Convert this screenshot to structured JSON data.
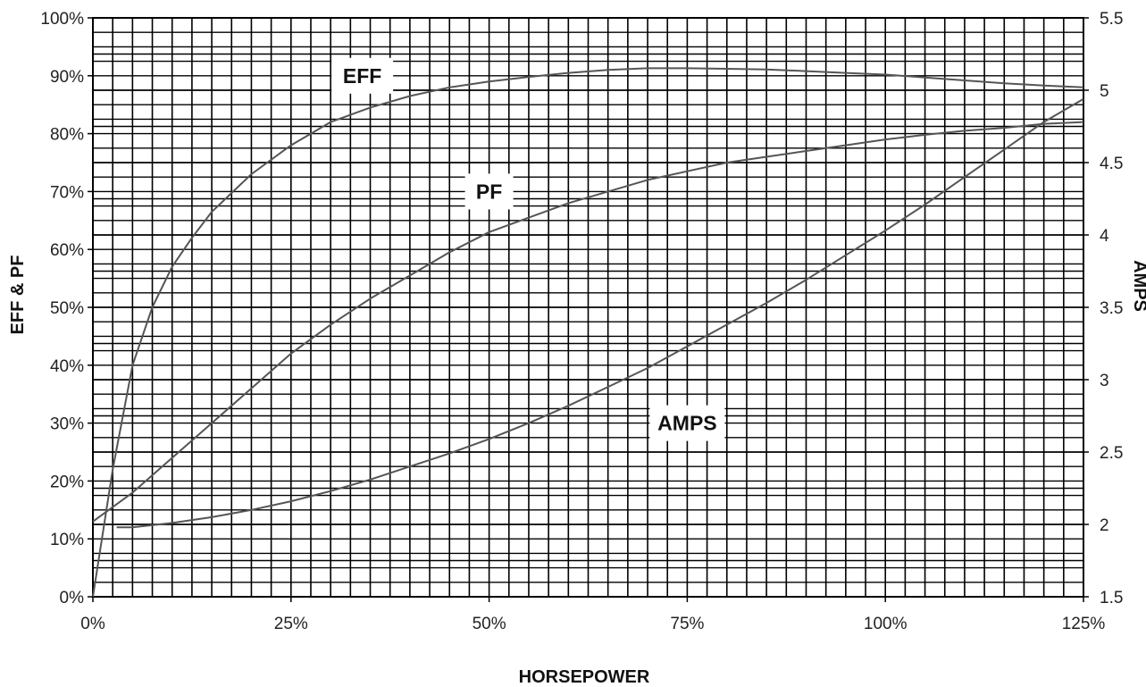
{
  "chart_data": {
    "type": "line",
    "title": "",
    "xlabel": "HORSEPOWER",
    "ylabel": "EFF & PF",
    "y2label": "AMPS",
    "xlim": [
      0,
      125
    ],
    "ylim": [
      0,
      100
    ],
    "y2lim": [
      1.5,
      5.5
    ],
    "x_ticks": [
      "0%",
      "25%",
      "50%",
      "75%",
      "100%",
      "125%"
    ],
    "y_ticks": [
      "0%",
      "10%",
      "20%",
      "30%",
      "40%",
      "50%",
      "60%",
      "70%",
      "80%",
      "90%",
      "100%"
    ],
    "y2_ticks": [
      "1.5",
      "2",
      "2.5",
      "3",
      "3.5",
      "4",
      "4.5",
      "5",
      "5.5"
    ],
    "grid": true,
    "line_color": "#555555",
    "grid_color": "#000000",
    "series": [
      {
        "name": "EFF",
        "axis": "left",
        "x": [
          0,
          2.5,
          5,
          7.5,
          10,
          12.5,
          15,
          20,
          25,
          30,
          35,
          40,
          45,
          50,
          55,
          60,
          65,
          70,
          75,
          80,
          85,
          90,
          95,
          100,
          105,
          110,
          115,
          120,
          125
        ],
        "y": [
          0,
          22,
          40,
          50,
          57,
          62,
          66.5,
          73,
          78,
          82,
          84.5,
          86.5,
          88,
          89,
          89.8,
          90.5,
          91,
          91.3,
          91.3,
          91.2,
          91.1,
          90.8,
          90.5,
          90.2,
          89.7,
          89.2,
          88.7,
          88.3,
          88
        ]
      },
      {
        "name": "PF",
        "axis": "left",
        "x": [
          0,
          5,
          10,
          15,
          20,
          25,
          30,
          35,
          40,
          45,
          50,
          55,
          60,
          65,
          70,
          75,
          80,
          85,
          90,
          95,
          100,
          105,
          110,
          115,
          120,
          125
        ],
        "y": [
          13,
          18,
          24,
          30,
          36,
          42,
          47,
          51.5,
          55.5,
          59.5,
          63,
          65.5,
          68,
          70,
          72,
          73.5,
          75,
          76,
          77,
          78,
          79,
          79.8,
          80.5,
          81,
          81.7,
          82
        ]
      },
      {
        "name": "AMPS",
        "axis": "right",
        "x": [
          3,
          5,
          10,
          15,
          20,
          25,
          30,
          35,
          40,
          45,
          50,
          55,
          60,
          65,
          70,
          75,
          80,
          85,
          90,
          95,
          100,
          105,
          110,
          115,
          120,
          125
        ],
        "y": [
          1.98,
          1.98,
          2.01,
          2.05,
          2.1,
          2.16,
          2.23,
          2.31,
          2.4,
          2.49,
          2.59,
          2.7,
          2.82,
          2.95,
          3.08,
          3.23,
          3.38,
          3.53,
          3.69,
          3.86,
          4.03,
          4.21,
          4.4,
          4.59,
          4.78,
          4.94
        ]
      }
    ],
    "annotations": [
      {
        "text": "EFF",
        "x": 34,
        "y": 90
      },
      {
        "text": "PF",
        "x": 50,
        "y": 70
      },
      {
        "text": "AMPS",
        "x": 75,
        "y": 30
      }
    ]
  }
}
